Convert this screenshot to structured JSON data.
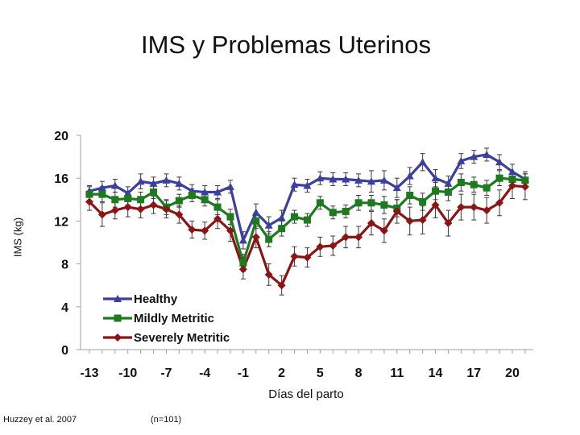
{
  "title": "IMS y Problemas Uterinos",
  "source": "Huzzey et al. 2007",
  "sample_size": "(n=101)",
  "chart_data": {
    "type": "line",
    "title": "IMS y Problemas Uterinos",
    "xlabel": "Días del parto",
    "ylabel": "IMS (kg)",
    "ylim": [
      0,
      20
    ],
    "xlim": [
      -13,
      21
    ],
    "yticks": [
      0,
      4,
      8,
      12,
      16,
      20
    ],
    "xticks": [
      -13,
      -10,
      -7,
      -4,
      -1,
      2,
      5,
      8,
      11,
      14,
      17,
      20
    ],
    "legend_position": "bottom-left",
    "x": [
      -13,
      -12,
      -11,
      -10,
      -9,
      -8,
      -7,
      -6,
      -5,
      -4,
      -3,
      -2,
      -1,
      0,
      1,
      2,
      3,
      4,
      5,
      6,
      7,
      8,
      9,
      10,
      11,
      12,
      13,
      14,
      15,
      16,
      17,
      18,
      19,
      20,
      21
    ],
    "series": [
      {
        "name": "Healthy",
        "color": "#3b3f9e",
        "marker": "triangle",
        "values": [
          14.8,
          15.1,
          15.3,
          14.6,
          15.7,
          15.5,
          15.8,
          15.5,
          14.8,
          14.7,
          14.7,
          15.2,
          10.2,
          12.8,
          11.6,
          12.3,
          15.4,
          15.3,
          16.0,
          15.9,
          15.9,
          15.8,
          15.7,
          15.8,
          15.1,
          16.2,
          17.5,
          16.0,
          15.5,
          17.6,
          18.0,
          18.2,
          17.5,
          16.6,
          15.9
        ],
        "errors": [
          0.5,
          0.6,
          0.6,
          0.6,
          0.7,
          0.6,
          0.6,
          0.6,
          0.6,
          0.6,
          0.6,
          0.6,
          0.8,
          0.8,
          0.8,
          0.7,
          0.6,
          0.6,
          0.6,
          0.6,
          0.6,
          0.6,
          1.0,
          0.9,
          0.9,
          0.8,
          0.8,
          0.8,
          0.7,
          0.7,
          0.6,
          0.6,
          0.7,
          0.7,
          0.7
        ]
      },
      {
        "name": "Mildly Metritic",
        "color": "#1e7a1e",
        "marker": "square",
        "values": [
          14.5,
          14.5,
          14.0,
          14.1,
          14.0,
          14.7,
          13.3,
          13.9,
          14.4,
          14.0,
          13.3,
          12.4,
          8.1,
          12.0,
          10.3,
          11.3,
          12.4,
          12.1,
          13.7,
          12.8,
          12.9,
          13.7,
          13.7,
          13.5,
          13.2,
          14.4,
          13.8,
          14.8,
          14.7,
          15.6,
          15.4,
          15.1,
          16.0,
          15.9,
          15.8
        ],
        "errors": [
          0.7,
          0.7,
          0.7,
          0.6,
          0.7,
          0.6,
          0.7,
          0.6,
          0.6,
          0.6,
          0.7,
          0.7,
          0.8,
          0.7,
          0.7,
          0.7,
          0.6,
          0.6,
          0.6,
          0.6,
          0.6,
          0.7,
          0.7,
          0.8,
          0.8,
          0.8,
          0.8,
          0.8,
          0.8,
          0.8,
          0.7,
          0.7,
          0.7,
          0.6,
          0.6
        ]
      },
      {
        "name": "Severely Metritic",
        "color": "#8b1414",
        "marker": "diamond",
        "values": [
          13.8,
          12.6,
          13.0,
          13.3,
          13.1,
          13.5,
          13.1,
          12.6,
          11.2,
          11.1,
          12.2,
          11.1,
          7.5,
          10.5,
          7.0,
          6.0,
          8.7,
          8.6,
          9.6,
          9.7,
          10.5,
          10.5,
          11.8,
          11.1,
          12.9,
          12.0,
          12.1,
          13.5,
          11.8,
          13.3,
          13.3,
          13.0,
          13.7,
          15.3,
          15.2
        ],
        "errors": [
          0.8,
          1.1,
          0.8,
          0.9,
          0.8,
          0.8,
          0.8,
          0.8,
          0.8,
          0.8,
          0.9,
          1.0,
          0.9,
          1.0,
          1.0,
          0.9,
          0.9,
          0.9,
          0.9,
          0.9,
          1.0,
          1.0,
          1.1,
          1.1,
          1.1,
          1.3,
          1.3,
          1.2,
          1.2,
          1.2,
          1.2,
          1.2,
          1.2,
          1.2,
          1.2
        ]
      }
    ]
  }
}
